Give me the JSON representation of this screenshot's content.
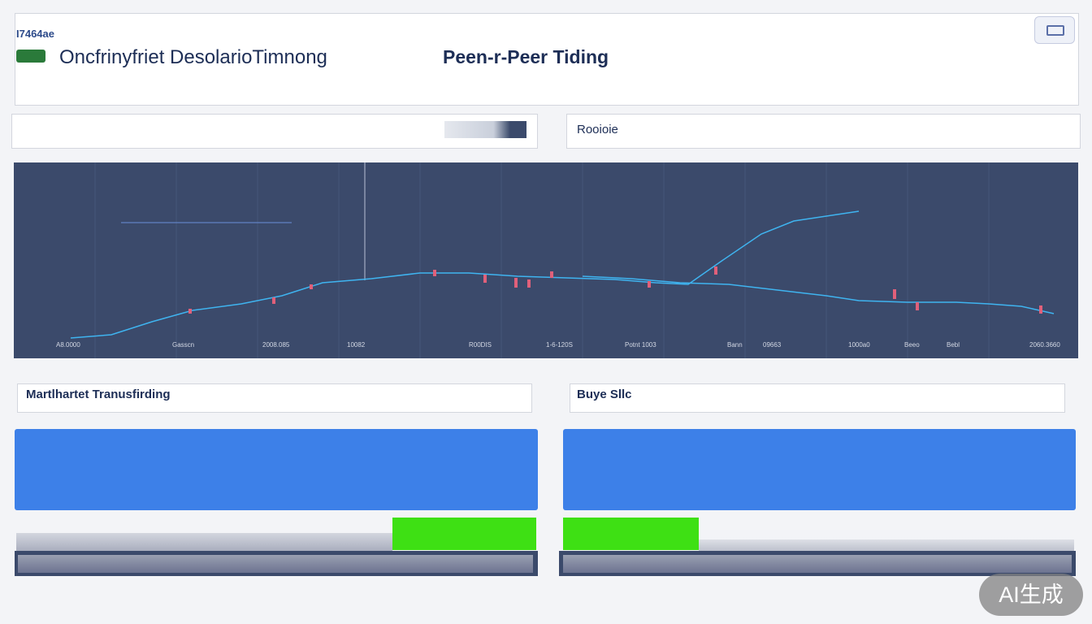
{
  "header": {
    "logo_text": "I7464ae",
    "title": "Oncfrinyfriet DesolarioTimnong",
    "subtitle": "Peen-r-Peer Tiding"
  },
  "search": {
    "label": "Rooioie"
  },
  "chart": {
    "x_labels": [
      "A8.0000",
      "Gasscn",
      "2008.085",
      "10082",
      "R00DIS",
      "1-6-120S",
      "Potnt 1003",
      "Bann",
      "09663",
      "1000a0",
      "Beeo",
      "Bebl",
      "2060.3660"
    ]
  },
  "panels": {
    "left_title": "Martlhartet Tranusfirding",
    "right_title": "Buye Sllc"
  },
  "badge": "AI生成"
}
